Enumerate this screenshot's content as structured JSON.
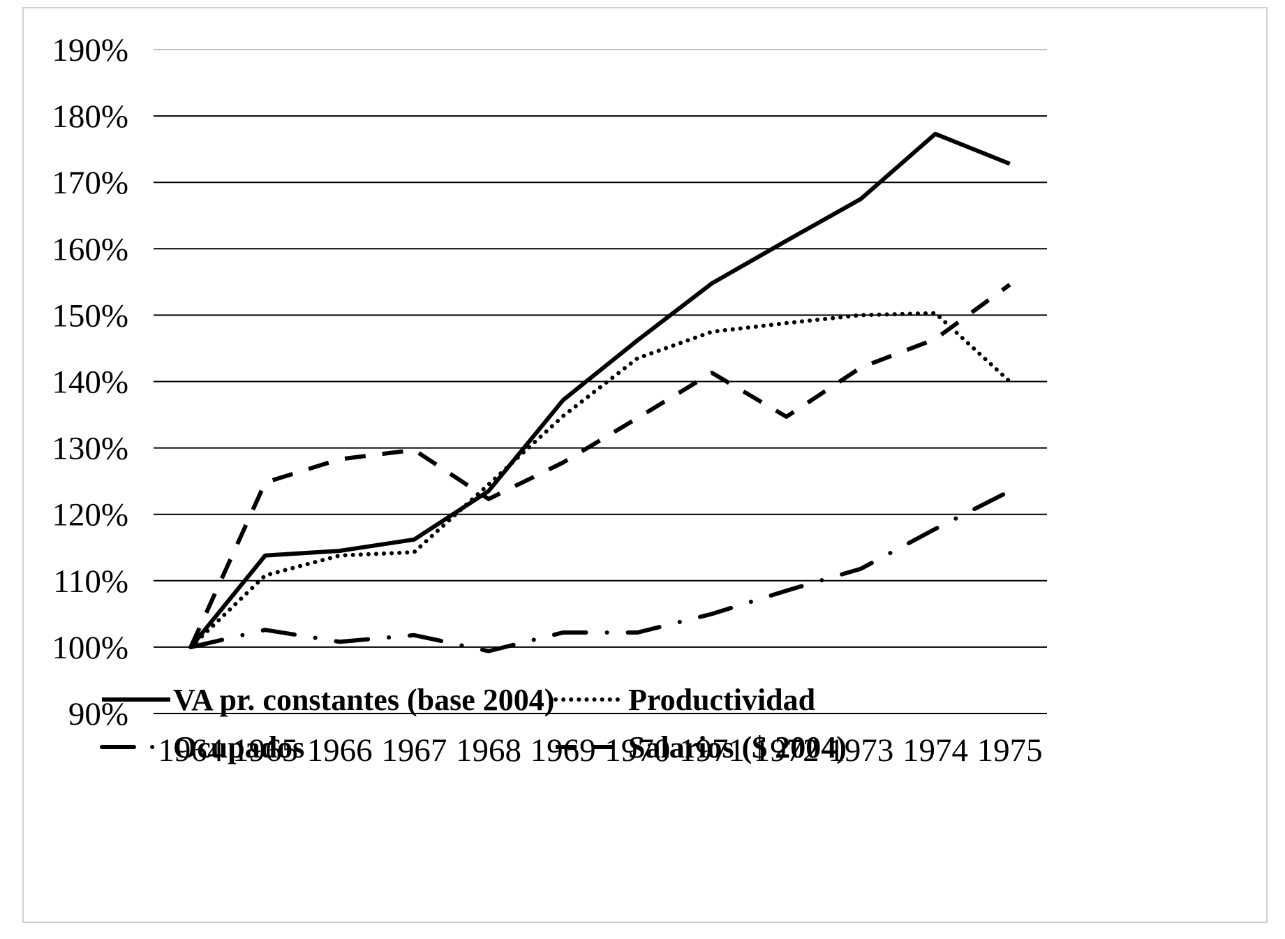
{
  "chart_data": {
    "type": "line",
    "title": "",
    "xlabel": "",
    "ylabel": "",
    "categories": [
      "1964",
      "1965",
      "1966",
      "1967",
      "1968",
      "1969",
      "1970",
      "1971",
      "1972",
      "1973",
      "1974",
      "1975"
    ],
    "ylim": [
      90,
      190
    ],
    "yticks": [
      "90%",
      "100%",
      "110%",
      "120%",
      "130%",
      "140%",
      "150%",
      "160%",
      "170%",
      "180%",
      "190%"
    ],
    "grid": "horizontal",
    "legend_position": "bottom",
    "series": [
      {
        "name": "VA pr. constantes (base 2004)",
        "style": "solid",
        "values": [
          100,
          113.8,
          114.5,
          116.2,
          123.5,
          137.2,
          146.2,
          154.8,
          161.2,
          167.5,
          177.3,
          172.8
        ]
      },
      {
        "name": "Productividad",
        "style": "dotted",
        "values": [
          100,
          110.8,
          113.8,
          114.3,
          124.5,
          134.8,
          143.5,
          147.5,
          148.8,
          150.0,
          150.3,
          140.0
        ]
      },
      {
        "name": "Ocupados",
        "style": "longdash-dot",
        "values": [
          100,
          102.6,
          100.8,
          101.8,
          99.4,
          102.2,
          102.2,
          105.0,
          108.5,
          111.8,
          117.8,
          123.5
        ]
      },
      {
        "name": "Salarios ($ 2004)",
        "style": "dashed",
        "values": [
          100,
          124.8,
          128.3,
          129.7,
          122.3,
          127.8,
          134.5,
          141.3,
          134.7,
          142.1,
          146.4,
          154.6
        ]
      }
    ]
  }
}
